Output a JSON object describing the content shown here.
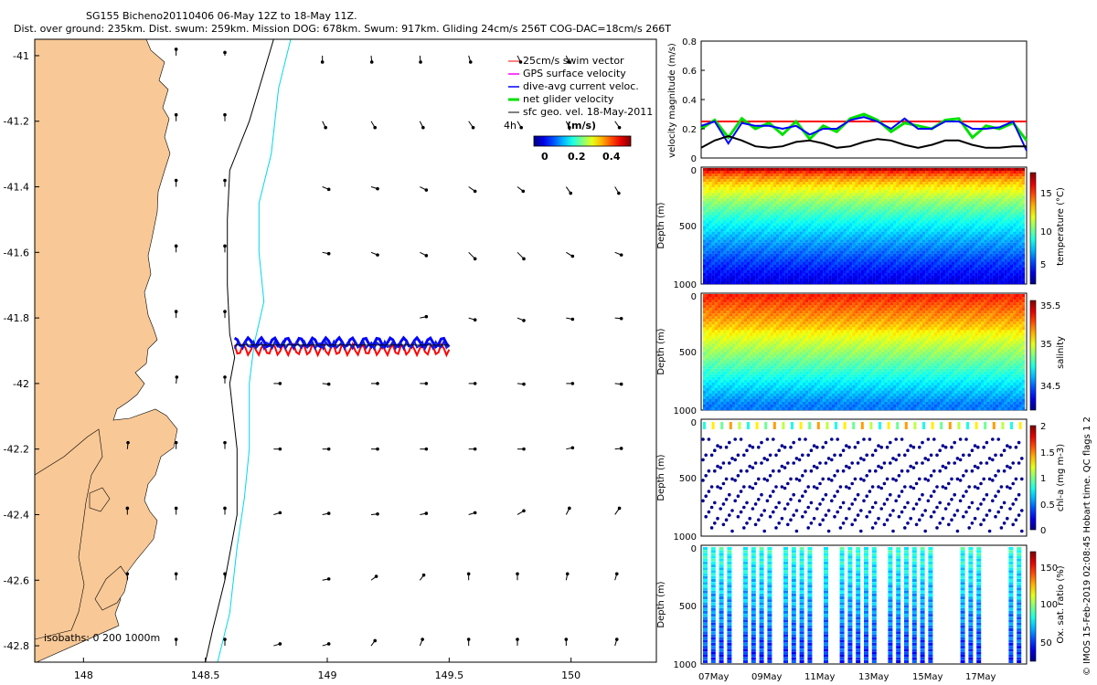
{
  "header": {
    "title_line1": "SG155 Bicheno20110406 06-May 12Z to 18-May 11Z.",
    "title_line2": "Dist. over ground: 235km. Dist. swum: 259km. Mission DOG: 678km. Swum: 917km. Gliding 24cm/s 256T COG-DAC=18cm/s 266T"
  },
  "colors": {
    "land": "#f8c896",
    "isobath_200": "#000000",
    "isobath_1000": "#00d8e8",
    "swim": "#ff0000",
    "gps": "#ff00ff",
    "dac": "#0000ff",
    "net": "#00e000",
    "sfc": "#000000"
  },
  "chart_data": [
    {
      "type": "map",
      "xlim": [
        147.8,
        150.35
      ],
      "ylim": [
        -42.85,
        -40.95
      ],
      "x_ticks": [
        148,
        148.5,
        149,
        149.5,
        150
      ],
      "y_ticks": [
        -41,
        -41.2,
        -41.4,
        -41.6,
        -41.8,
        -42,
        -42.2,
        -42.4,
        -42.6,
        -42.8
      ],
      "x_tick_labels": [
        "148",
        "148.5",
        "149",
        "149.5",
        "150"
      ],
      "y_tick_labels": [
        "-41",
        "-41.2",
        "-41.4",
        "-41.6",
        "-41.8",
        "-42",
        "-42.2",
        "-42.4",
        "-42.6",
        "-42.8"
      ],
      "legend": [
        {
          "label": "25cm/s swim vector",
          "color": "#ff0000"
        },
        {
          "label": "GPS surface velocity",
          "color": "#ff00ff"
        },
        {
          "label": "dive-avg current veloc.",
          "color": "#0000ff"
        },
        {
          "label": "net glider velocity",
          "color": "#00e000"
        },
        {
          "label": "sfc geo. vel. 18-May-2011",
          "color": "#000000"
        }
      ],
      "legend_placement": "top-right",
      "colorbar": {
        "label": "(m/s)",
        "prefix": "4h",
        "range": [
          0,
          0.5
        ],
        "ticks": [
          0,
          0.2,
          0.4
        ],
        "tick_labels": [
          "0",
          "0.2",
          "0.4"
        ],
        "colormap": "jet"
      },
      "isobath_note": "isobaths: 0   200  1000m",
      "track": {
        "lon_start": 148.62,
        "lon_end": 149.5,
        "lat_center": -41.88
      },
      "isobath_200_points": [
        [
          148.78,
          -40.95
        ],
        [
          148.74,
          -41.05
        ],
        [
          148.68,
          -41.2
        ],
        [
          148.6,
          -41.35
        ],
        [
          148.59,
          -41.5
        ],
        [
          148.59,
          -41.7
        ],
        [
          148.6,
          -41.85
        ],
        [
          148.62,
          -41.92
        ],
        [
          148.6,
          -42.0
        ],
        [
          148.63,
          -42.2
        ],
        [
          148.63,
          -42.4
        ],
        [
          148.58,
          -42.6
        ],
        [
          148.53,
          -42.75
        ],
        [
          148.5,
          -42.85
        ]
      ],
      "isobath_1000_points": [
        [
          148.85,
          -40.95
        ],
        [
          148.8,
          -41.1
        ],
        [
          148.77,
          -41.3
        ],
        [
          148.72,
          -41.45
        ],
        [
          148.72,
          -41.6
        ],
        [
          148.74,
          -41.75
        ],
        [
          148.7,
          -41.88
        ],
        [
          148.68,
          -42.0
        ],
        [
          148.68,
          -42.2
        ],
        [
          148.66,
          -42.35
        ],
        [
          148.63,
          -42.5
        ],
        [
          148.6,
          -42.7
        ],
        [
          148.55,
          -42.85
        ]
      ],
      "current_vectors": [
        [
          148.38,
          -41.0,
          0,
          1
        ],
        [
          148.58,
          -41.0,
          0,
          0.5
        ],
        [
          148.98,
          -41.0,
          0,
          -1
        ],
        [
          149.18,
          -41.0,
          0.1,
          -1
        ],
        [
          149.38,
          -41.0,
          0.1,
          -1
        ],
        [
          149.58,
          -41.0,
          0.3,
          -1
        ],
        [
          149.78,
          -41.0,
          0.5,
          -1
        ],
        [
          149.98,
          -41.0,
          0.4,
          -1
        ],
        [
          148.38,
          -41.2,
          0,
          1
        ],
        [
          148.58,
          -41.2,
          0,
          1
        ],
        [
          148.98,
          -41.2,
          0.5,
          -1
        ],
        [
          149.18,
          -41.2,
          0.6,
          -1
        ],
        [
          149.38,
          -41.2,
          0.5,
          -1
        ],
        [
          149.58,
          -41.2,
          0.7,
          -1
        ],
        [
          149.78,
          -41.2,
          0.6,
          -1
        ],
        [
          149.98,
          -41.2,
          0.5,
          -1
        ],
        [
          150.18,
          -41.2,
          0.7,
          -1
        ],
        [
          148.38,
          -41.4,
          0,
          1
        ],
        [
          148.58,
          -41.4,
          0,
          1
        ],
        [
          148.98,
          -41.4,
          1,
          -0.4
        ],
        [
          149.18,
          -41.4,
          1,
          -0.3
        ],
        [
          149.38,
          -41.4,
          1,
          -0.5
        ],
        [
          149.58,
          -41.4,
          1,
          -0.7
        ],
        [
          149.78,
          -41.4,
          0.9,
          -0.7
        ],
        [
          149.98,
          -41.4,
          0.7,
          -1
        ],
        [
          150.18,
          -41.4,
          0.6,
          -1
        ],
        [
          148.38,
          -41.6,
          0,
          1
        ],
        [
          148.58,
          -41.6,
          0,
          1
        ],
        [
          148.98,
          -41.6,
          1,
          -0.2
        ],
        [
          149.18,
          -41.6,
          1,
          -0.4
        ],
        [
          149.38,
          -41.6,
          1,
          -0.5
        ],
        [
          149.58,
          -41.6,
          1,
          -1
        ],
        [
          149.78,
          -41.6,
          1,
          -1
        ],
        [
          149.98,
          -41.6,
          1,
          -0.6
        ],
        [
          150.18,
          -41.6,
          1,
          -0.4
        ],
        [
          148.38,
          -41.8,
          0,
          1
        ],
        [
          148.58,
          -41.8,
          0,
          1
        ],
        [
          149.38,
          -41.8,
          1,
          0.2
        ],
        [
          149.58,
          -41.8,
          1,
          -0.3
        ],
        [
          149.78,
          -41.8,
          1,
          -0.4
        ],
        [
          149.98,
          -41.8,
          1,
          -0.2
        ],
        [
          150.18,
          -41.8,
          1,
          -0.1
        ],
        [
          148.38,
          -42.0,
          0.1,
          1
        ],
        [
          148.58,
          -42.0,
          0,
          1
        ],
        [
          148.78,
          -42.0,
          1,
          0
        ],
        [
          148.98,
          -42.0,
          1,
          -0.1
        ],
        [
          149.18,
          -42.0,
          1,
          0
        ],
        [
          149.38,
          -42.0,
          1,
          0
        ],
        [
          149.58,
          -42.0,
          1,
          0
        ],
        [
          149.78,
          -42.0,
          1,
          -0.1
        ],
        [
          149.98,
          -42.0,
          1,
          0
        ],
        [
          150.18,
          -42.0,
          1,
          -0.1
        ],
        [
          148.18,
          -42.2,
          0.1,
          1
        ],
        [
          148.38,
          -42.2,
          0,
          1
        ],
        [
          148.58,
          -42.2,
          0,
          1
        ],
        [
          148.78,
          -42.2,
          1,
          0
        ],
        [
          148.98,
          -42.2,
          1,
          0
        ],
        [
          149.18,
          -42.2,
          1,
          0
        ],
        [
          149.38,
          -42.2,
          1,
          0
        ],
        [
          149.58,
          -42.2,
          1,
          0
        ],
        [
          149.78,
          -42.2,
          1,
          0
        ],
        [
          149.98,
          -42.2,
          1,
          0.2
        ],
        [
          150.18,
          -42.2,
          1,
          0.1
        ],
        [
          148.18,
          -42.4,
          0,
          1
        ],
        [
          148.38,
          -42.4,
          0,
          1
        ],
        [
          148.58,
          -42.4,
          0,
          1
        ],
        [
          148.78,
          -42.4,
          1,
          0.3
        ],
        [
          148.98,
          -42.4,
          1,
          0.2
        ],
        [
          149.18,
          -42.4,
          1,
          0.1
        ],
        [
          149.38,
          -42.4,
          1,
          0.2
        ],
        [
          149.58,
          -42.4,
          1,
          0.3
        ],
        [
          149.78,
          -42.4,
          1,
          0.6
        ],
        [
          149.98,
          -42.4,
          0.5,
          1
        ],
        [
          150.18,
          -42.4,
          0.7,
          1
        ],
        [
          148.18,
          -42.6,
          0,
          1
        ],
        [
          148.38,
          -42.6,
          0,
          1
        ],
        [
          148.58,
          -42.6,
          0,
          1
        ],
        [
          148.98,
          -42.6,
          1,
          0.2
        ],
        [
          149.18,
          -42.6,
          0.8,
          0.6
        ],
        [
          149.38,
          -42.6,
          0.6,
          0.8
        ],
        [
          149.58,
          -42.6,
          0,
          1
        ],
        [
          149.78,
          -42.6,
          0,
          1
        ],
        [
          149.98,
          -42.6,
          0.2,
          1
        ],
        [
          150.18,
          -42.6,
          0.3,
          1
        ],
        [
          148.38,
          -42.8,
          0,
          1
        ],
        [
          148.58,
          -42.8,
          0,
          1
        ],
        [
          148.78,
          -42.8,
          1,
          0.3
        ],
        [
          148.98,
          -42.8,
          1,
          0.3
        ],
        [
          149.18,
          -42.8,
          0.6,
          0.8
        ],
        [
          149.38,
          -42.8,
          0.4,
          1
        ],
        [
          149.58,
          -42.8,
          0,
          1
        ],
        [
          149.78,
          -42.8,
          0,
          1
        ],
        [
          149.98,
          -42.8,
          0,
          1
        ],
        [
          150.18,
          -42.8,
          0.3,
          1
        ]
      ]
    },
    {
      "type": "line",
      "ylabel": "velocity magnitude (m/s)",
      "ylim": [
        0,
        0.8
      ],
      "y_ticks": [
        0,
        0.2,
        0.4,
        0.6,
        0.8
      ],
      "y_tick_labels": [
        "0",
        "0.2",
        "0.4",
        "0.6",
        "0.8"
      ],
      "x": [
        0,
        0.5,
        1,
        1.5,
        2,
        2.5,
        3,
        3.5,
        4,
        4.5,
        5,
        5.5,
        6,
        6.5,
        7,
        7.5,
        8,
        8.5,
        9,
        9.5,
        10,
        10.5,
        11,
        11.5,
        12
      ],
      "series": [
        {
          "color": "#ff0000",
          "values": [
            0.25,
            0.25,
            0.25,
            0.25,
            0.25,
            0.25,
            0.25,
            0.25,
            0.25,
            0.25,
            0.25,
            0.25,
            0.25,
            0.25,
            0.25,
            0.25,
            0.25,
            0.25,
            0.25,
            0.25,
            0.25,
            0.25,
            0.25,
            0.25,
            0.25
          ]
        },
        {
          "color": "#00e000",
          "values": [
            0.2,
            0.26,
            0.14,
            0.27,
            0.2,
            0.24,
            0.16,
            0.25,
            0.13,
            0.22,
            0.18,
            0.27,
            0.3,
            0.26,
            0.18,
            0.24,
            0.22,
            0.2,
            0.26,
            0.27,
            0.14,
            0.22,
            0.2,
            0.24,
            0.12
          ]
        },
        {
          "color": "#0000ff",
          "values": [
            0.22,
            0.25,
            0.1,
            0.24,
            0.22,
            0.22,
            0.2,
            0.22,
            0.16,
            0.2,
            0.2,
            0.26,
            0.28,
            0.25,
            0.2,
            0.27,
            0.2,
            0.2,
            0.25,
            0.25,
            0.2,
            0.2,
            0.21,
            0.25,
            0.05
          ]
        },
        {
          "color": "#000000",
          "values": [
            0.07,
            0.12,
            0.15,
            0.12,
            0.08,
            0.07,
            0.08,
            0.11,
            0.12,
            0.1,
            0.07,
            0.08,
            0.11,
            0.13,
            0.12,
            0.09,
            0.07,
            0.09,
            0.12,
            0.12,
            0.09,
            0.07,
            0.07,
            0.08,
            0.08
          ]
        }
      ]
    },
    {
      "type": "heatmap",
      "ylabel": "Depth (m)",
      "ylim": [
        1000,
        0
      ],
      "y_tick_labels": [
        "0",
        "500",
        "1000"
      ],
      "colorbar_label": "temperature (°C)",
      "colorbar_range": [
        4,
        19
      ],
      "colorbar_ticks": [
        5,
        10,
        15
      ],
      "colorbar_tick_labels": [
        "5",
        "10",
        "15"
      ]
    },
    {
      "type": "heatmap",
      "ylabel": "Depth (m)",
      "ylim": [
        1000,
        0
      ],
      "y_tick_labels": [
        "0",
        "500",
        "1000"
      ],
      "colorbar_label": "salinity",
      "colorbar_range": [
        34.3,
        35.55
      ],
      "colorbar_ticks": [
        34.5,
        35,
        35.5
      ],
      "colorbar_tick_labels": [
        "34.5",
        "35",
        "35.5"
      ]
    },
    {
      "type": "heatmap",
      "ylabel": "Depth (m)",
      "ylim": [
        1000,
        0
      ],
      "y_tick_labels": [
        "0",
        "500",
        "1000"
      ],
      "colorbar_label": "chl-a (mg m-3)",
      "colorbar_range": [
        0,
        2
      ],
      "colorbar_ticks": [
        0,
        0.5,
        1,
        1.5,
        2
      ],
      "colorbar_tick_labels": [
        "0",
        "0.5",
        "1",
        "1.5",
        "2"
      ]
    },
    {
      "type": "heatmap",
      "ylabel": "Depth (m)",
      "ylim": [
        1000,
        0
      ],
      "y_tick_labels": [
        "0",
        "500",
        "1000"
      ],
      "x_tick_labels": [
        "07May",
        "09May",
        "11May",
        "13May",
        "15May",
        "17May"
      ],
      "colorbar_label": "Ox. sat. ratio (%)",
      "colorbar_range": [
        20,
        180
      ],
      "colorbar_ticks": [
        50,
        100,
        150
      ],
      "colorbar_tick_labels": [
        "50",
        "100",
        "150"
      ]
    }
  ],
  "side_note": "© IMOS 15-Feb-2019 02:08:45 Hobart time. QC flags 1  2"
}
